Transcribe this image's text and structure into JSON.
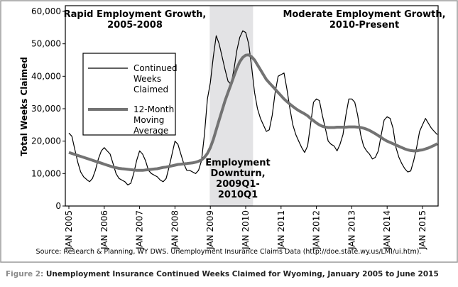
{
  "chart_data": {
    "type": "line",
    "y_label": "Total Weeks Claimed",
    "categories": [
      "JAN 2005",
      null,
      null,
      null,
      null,
      null,
      null,
      null,
      null,
      null,
      null,
      null,
      "JAN 2006",
      null,
      null,
      null,
      null,
      null,
      null,
      null,
      null,
      null,
      null,
      null,
      "JAN 2007",
      null,
      null,
      null,
      null,
      null,
      null,
      null,
      null,
      null,
      null,
      null,
      "JAN 2008",
      null,
      null,
      null,
      null,
      null,
      null,
      null,
      null,
      null,
      null,
      null,
      "JAN 2009",
      null,
      null,
      null,
      null,
      null,
      null,
      null,
      null,
      null,
      null,
      null,
      "JAN 2010",
      null,
      null,
      null,
      null,
      null,
      null,
      null,
      null,
      null,
      null,
      null,
      "JAN 2011",
      null,
      null,
      null,
      null,
      null,
      null,
      null,
      null,
      null,
      null,
      null,
      "JAN 2012",
      null,
      null,
      null,
      null,
      null,
      null,
      null,
      null,
      null,
      null,
      null,
      "JAN 2013",
      null,
      null,
      null,
      null,
      null,
      null,
      null,
      null,
      null,
      null,
      null,
      "JAN 2014",
      null,
      null,
      null,
      null,
      null,
      null,
      null,
      null,
      null,
      null,
      null,
      "JAN 2015",
      null,
      null,
      null,
      null,
      null
    ],
    "series": [
      {
        "name": "Continued Weeks Claimed",
        "color": "#000000",
        "width": 1.2,
        "values": [
          22500,
          21500,
          17500,
          13500,
          10500,
          9000,
          8200,
          7500,
          8500,
          11000,
          14500,
          17000,
          18000,
          17000,
          16000,
          13000,
          10000,
          8500,
          8000,
          7500,
          6500,
          7000,
          10000,
          14000,
          17000,
          16000,
          14000,
          11000,
          10000,
          9500,
          9000,
          8000,
          7500,
          8500,
          12000,
          16000,
          20000,
          19000,
          16000,
          13000,
          11000,
          11000,
          10500,
          10000,
          11000,
          14000,
          22000,
          33000,
          38000,
          46000,
          52500,
          50000,
          46000,
          42000,
          38500,
          37500,
          42000,
          48000,
          52000,
          54000,
          53500,
          50000,
          43000,
          35000,
          30000,
          27000,
          25000,
          23000,
          23500,
          28000,
          35000,
          40000,
          40500,
          41000,
          36000,
          30000,
          25000,
          22000,
          20000,
          18000,
          16500,
          18500,
          25000,
          32000,
          33000,
          32500,
          28000,
          24000,
          20000,
          19000,
          18500,
          17000,
          19000,
          22000,
          28000,
          33000,
          33000,
          32000,
          28000,
          22000,
          18500,
          17000,
          16000,
          14500,
          15000,
          17000,
          22000,
          26500,
          27500,
          27000,
          24000,
          18000,
          15000,
          13000,
          11500,
          10500,
          10800,
          14000,
          18000,
          23000,
          25000,
          27000,
          25500,
          24000,
          23000,
          22000
        ]
      },
      {
        "name": "12-Month Moving Average",
        "color": "#737373",
        "width": 4,
        "values": [
          16500,
          16200,
          15900,
          15600,
          15300,
          15000,
          14700,
          14400,
          14100,
          13800,
          13500,
          13200,
          12900,
          12600,
          12300,
          12000,
          11800,
          11600,
          11500,
          11400,
          11300,
          11200,
          11100,
          11000,
          11000,
          11000,
          11100,
          11200,
          11300,
          11400,
          11500,
          11700,
          11900,
          12000,
          12200,
          12400,
          12600,
          12800,
          12900,
          13000,
          13100,
          13200,
          13300,
          13500,
          13800,
          14200,
          15000,
          16200,
          18000,
          20500,
          23500,
          26500,
          29500,
          32500,
          35000,
          37500,
          40000,
          42500,
          44500,
          45800,
          46500,
          46600,
          46000,
          45000,
          43500,
          42000,
          40500,
          39000,
          38000,
          37000,
          36000,
          35000,
          34000,
          33000,
          32200,
          31400,
          30700,
          30000,
          29400,
          28900,
          28400,
          27800,
          27000,
          26300,
          25600,
          25000,
          24600,
          24300,
          24200,
          24200,
          24200,
          24300,
          24300,
          24300,
          24300,
          24400,
          24400,
          24400,
          24300,
          24200,
          24000,
          23700,
          23300,
          22800,
          22300,
          21700,
          21100,
          20500,
          20000,
          19600,
          19200,
          18800,
          18400,
          18000,
          17600,
          17300,
          17100,
          17000,
          17000,
          17200,
          17300,
          17600,
          17900,
          18300,
          18700,
          19200
        ]
      }
    ],
    "ylim": [
      0,
      60000
    ],
    "yticks": [
      0,
      {
        "value": 10000,
        "label": "10,000"
      },
      {
        "value": 20000,
        "label": "20,000"
      },
      {
        "value": 30000,
        "label": "30,000"
      },
      {
        "value": 40000,
        "label": "40,000"
      },
      {
        "value": 50000,
        "label": "50,000"
      },
      {
        "value": 60000,
        "label": "60,000"
      }
    ],
    "shade": {
      "start": 47.8,
      "end": 62.5,
      "color": "#e3e3e5"
    },
    "annotations": [
      {
        "lines": [
          "Rapid Employment Growth,",
          "2005-2008"
        ]
      },
      {
        "lines": [
          "Moderate Employment Growth,",
          "2010-Present"
        ]
      },
      {
        "lines": [
          "Employment",
          "Downturn,",
          "2009Q1-",
          "2010Q1"
        ]
      }
    ],
    "legend": "upper left",
    "legend_lines": [
      [
        "Continued",
        "Weeks",
        "Claimed"
      ],
      [
        "12-Month",
        "Moving",
        "Average"
      ]
    ],
    "source": "Source: Research & Planning, WY DWS. Unemployment Insurance Claims Data (http://doe.state.wy.us/LMI/ui.htm).",
    "caption": {
      "label": "Figure 2:",
      "text": "Unemployment Insurance Continued Weeks Claimed for Wyoming, January 2005 to June 2015"
    }
  }
}
